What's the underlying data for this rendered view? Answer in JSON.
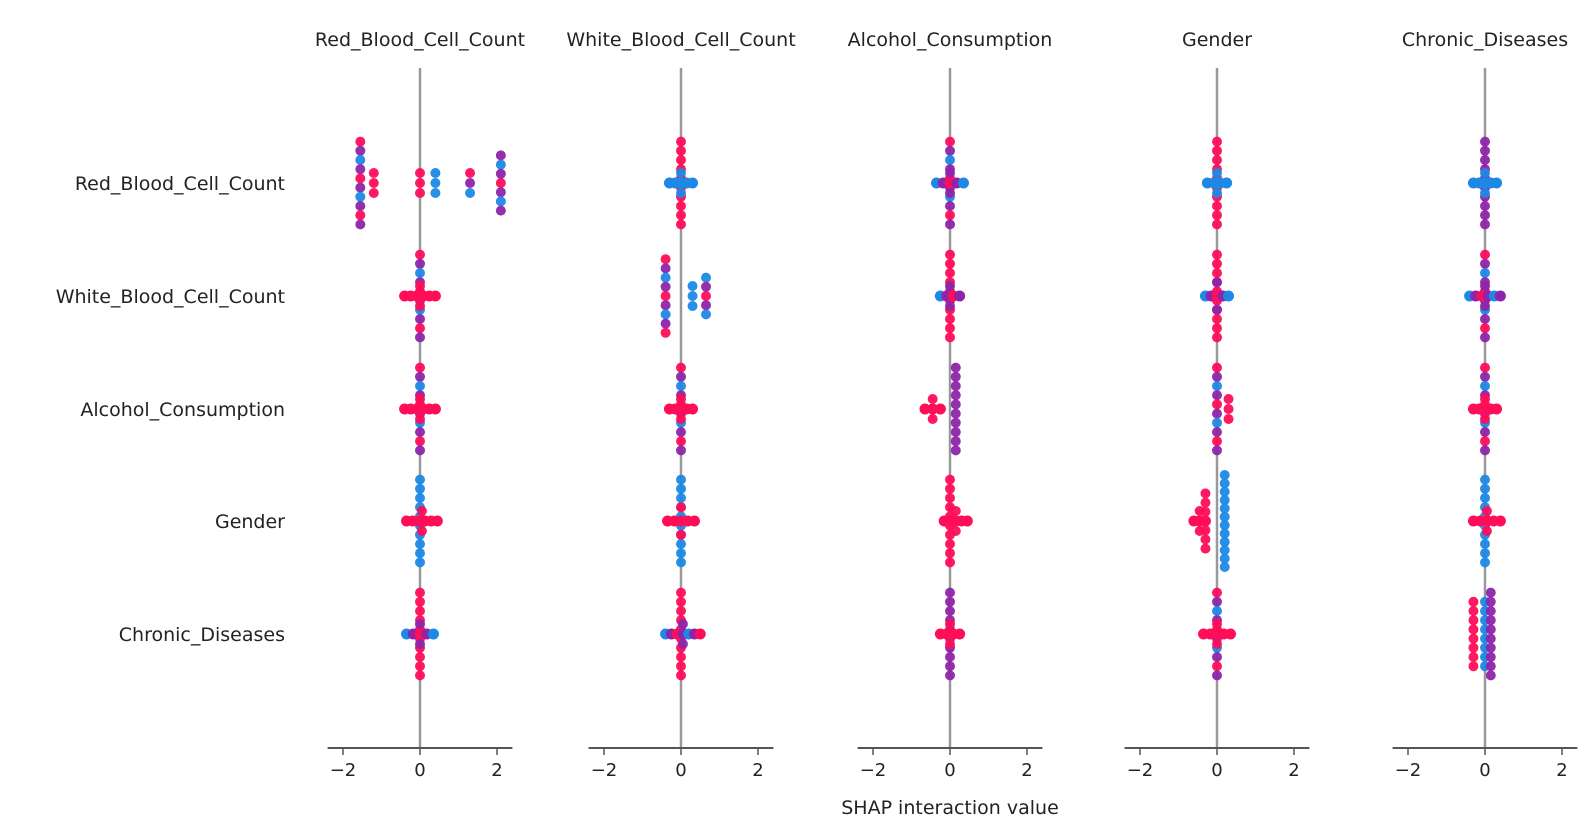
{
  "chart_data": {
    "type": "scatter",
    "subtype": "shap-interaction-beeswarm-grid",
    "xlabel": "SHAP interaction value",
    "features": [
      "Red_Blood_Cell_Count",
      "White_Blood_Cell_Count",
      "Alcohol_Consumption",
      "Gender",
      "Chronic_Diseases"
    ],
    "xlim": [
      -2.4,
      2.4
    ],
    "xticks": [
      -2,
      0,
      2
    ],
    "xtick_labels": [
      "−2",
      "0",
      "2"
    ],
    "grid": false,
    "colors": {
      "low": "#1e88e5",
      "mid": "#8e24aa",
      "high": "#ff0d57",
      "zero_line": "#999999",
      "axis": "#555555"
    },
    "cells": [
      [
        {
          "clusters": [
            {
              "x": -1.55,
              "spread": 0.9,
              "color": "mixed"
            },
            {
              "x": -1.2,
              "spread": 0.15,
              "color": "high"
            },
            {
              "x": 0.0,
              "spread": 0.1,
              "color": "high"
            },
            {
              "x": 0.4,
              "spread": 0.1,
              "color": "low"
            },
            {
              "x": 1.3,
              "spread": 0.15,
              "color": "mixed"
            },
            {
              "x": 2.1,
              "spread": 0.6,
              "color": "mixed"
            }
          ]
        },
        {
          "clusters": [
            {
              "x": 0.0,
              "spread": 0.9,
              "color": "high"
            },
            {
              "x": 0.0,
              "spread": 0.15,
              "color": "low",
              "wide": 0.3
            }
          ]
        },
        {
          "clusters": [
            {
              "x": 0.0,
              "spread": 0.9,
              "color": "mixed"
            },
            {
              "x": 0.0,
              "spread": 0.15,
              "color": "mixed",
              "wide": 0.35
            }
          ]
        },
        {
          "clusters": [
            {
              "x": 0.0,
              "spread": 0.9,
              "color": "high"
            },
            {
              "x": 0.0,
              "spread": 0.15,
              "color": "low",
              "wide": 0.25
            }
          ]
        },
        {
          "clusters": [
            {
              "x": 0.0,
              "spread": 0.9,
              "color": "mid"
            },
            {
              "x": 0.0,
              "spread": 0.15,
              "color": "low",
              "wide": 0.3
            }
          ]
        }
      ],
      [
        {
          "clusters": [
            {
              "x": 0.0,
              "spread": 0.9,
              "color": "mixed"
            },
            {
              "x": 0.0,
              "spread": 0.15,
              "color": "high",
              "wide": 0.4
            }
          ]
        },
        {
          "clusters": [
            {
              "x": -0.4,
              "spread": 0.8,
              "color": "mixed"
            },
            {
              "x": 0.3,
              "spread": 0.1,
              "color": "low"
            },
            {
              "x": 0.65,
              "spread": 0.4,
              "color": "mixed"
            }
          ]
        },
        {
          "clusters": [
            {
              "x": 0.0,
              "spread": 0.9,
              "color": "high"
            },
            {
              "x": 0.0,
              "spread": 0.15,
              "color": "mixed",
              "wide": 0.25
            }
          ]
        },
        {
          "clusters": [
            {
              "x": 0.0,
              "spread": 0.9,
              "color": "high"
            },
            {
              "x": 0.0,
              "spread": 0.3,
              "color": "mixed",
              "wide": 0.3
            }
          ]
        },
        {
          "clusters": [
            {
              "x": 0.0,
              "spread": 0.9,
              "color": "mixed"
            },
            {
              "x": 0.0,
              "spread": 0.15,
              "color": "mixed",
              "wide": 0.4
            }
          ]
        }
      ],
      [
        {
          "clusters": [
            {
              "x": 0.0,
              "spread": 0.9,
              "color": "mixed"
            },
            {
              "x": 0.0,
              "spread": 0.15,
              "color": "high",
              "wide": 0.4
            }
          ]
        },
        {
          "clusters": [
            {
              "x": 0.0,
              "spread": 0.9,
              "color": "mixed"
            },
            {
              "x": 0.0,
              "spread": 0.15,
              "color": "high",
              "wide": 0.3
            }
          ]
        },
        {
          "clusters": [
            {
              "x": -0.45,
              "spread": 0.15,
              "color": "high",
              "wide": 0.2
            },
            {
              "x": 0.15,
              "spread": 0.9,
              "color": "mid"
            }
          ]
        },
        {
          "clusters": [
            {
              "x": 0.0,
              "spread": 0.9,
              "color": "mixed"
            },
            {
              "x": 0.3,
              "spread": 0.1,
              "color": "high"
            }
          ]
        },
        {
          "clusters": [
            {
              "x": 0.0,
              "spread": 0.9,
              "color": "mixed"
            },
            {
              "x": 0.0,
              "spread": 0.15,
              "color": "high",
              "wide": 0.3
            }
          ]
        }
      ],
      [
        {
          "clusters": [
            {
              "x": 0.0,
              "spread": 0.9,
              "color": "low"
            },
            {
              "x": 0.05,
              "spread": 0.2,
              "color": "high",
              "wide": 0.4
            }
          ]
        },
        {
          "clusters": [
            {
              "x": 0.0,
              "spread": 0.9,
              "color": "low"
            },
            {
              "x": 0.0,
              "spread": 0.3,
              "color": "high",
              "wide": 0.35
            }
          ]
        },
        {
          "clusters": [
            {
              "x": 0.0,
              "spread": 0.9,
              "color": "high"
            },
            {
              "x": 0.15,
              "spread": 0.15,
              "color": "high",
              "wide": 0.3
            }
          ]
        },
        {
          "clusters": [
            {
              "x": -0.3,
              "spread": 0.6,
              "color": "high"
            },
            {
              "x": -0.45,
              "spread": 0.15,
              "color": "high",
              "wide": 0.15
            },
            {
              "x": 0.2,
              "spread": 1.0,
              "color": "low"
            }
          ]
        },
        {
          "clusters": [
            {
              "x": 0.0,
              "spread": 0.9,
              "color": "low"
            },
            {
              "x": 0.05,
              "spread": 0.15,
              "color": "high",
              "wide": 0.35
            }
          ]
        }
      ],
      [
        {
          "clusters": [
            {
              "x": 0.0,
              "spread": 0.9,
              "color": "high"
            },
            {
              "x": 0.0,
              "spread": 0.15,
              "color": "mixed",
              "wide": 0.35
            }
          ]
        },
        {
          "clusters": [
            {
              "x": 0.0,
              "spread": 0.9,
              "color": "high"
            },
            {
              "x": 0.05,
              "spread": 0.2,
              "color": "mixed",
              "wide": 0.45
            }
          ]
        },
        {
          "clusters": [
            {
              "x": 0.0,
              "spread": 0.9,
              "color": "mid"
            },
            {
              "x": 0.0,
              "spread": 0.15,
              "color": "high",
              "wide": 0.25
            }
          ]
        },
        {
          "clusters": [
            {
              "x": 0.0,
              "spread": 0.9,
              "color": "mixed"
            },
            {
              "x": 0.0,
              "spread": 0.15,
              "color": "high",
              "wide": 0.35
            }
          ]
        },
        {
          "clusters": [
            {
              "x": -0.3,
              "spread": 0.7,
              "color": "high"
            },
            {
              "x": 0.0,
              "spread": 0.7,
              "color": "low"
            },
            {
              "x": 0.15,
              "spread": 0.9,
              "color": "mid"
            }
          ]
        }
      ]
    ]
  }
}
